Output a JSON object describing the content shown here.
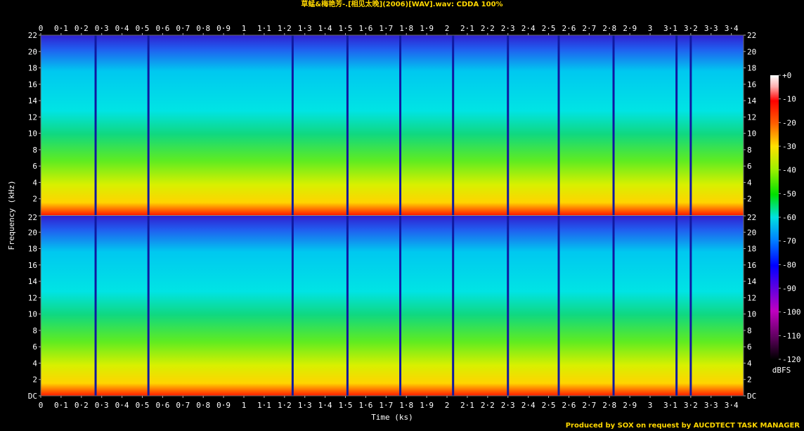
{
  "chart_data": {
    "type": "heatmap",
    "title": "草蜢&梅艳芳-.[相见太晚](2006)[WAV].wav: CDDA 100%",
    "xlabel": "Time (ks)",
    "ylabel": "Frequency (kHz)",
    "colorbar_label": "dBFS",
    "credit": "Produced by SOX on request by AUCDTECT TASK MANAGER",
    "x_ticks": [
      "0",
      "0·1",
      "0·2",
      "0·3",
      "0·4",
      "0·5",
      "0·6",
      "0·7",
      "0·8",
      "0·9",
      "1",
      "1·1",
      "1·2",
      "1·3",
      "1·4",
      "1·5",
      "1·6",
      "1·7",
      "1·8",
      "1·9",
      "2",
      "2·1",
      "2·2",
      "2·3",
      "2·4",
      "2·5",
      "2·6",
      "2·7",
      "2·8",
      "2·9",
      "3",
      "3·1",
      "3·2",
      "3·3",
      "3·4"
    ],
    "x_range": [
      0,
      3.46
    ],
    "y_ticks": [
      "DC",
      "2",
      "4",
      "6",
      "8",
      "10",
      "12",
      "14",
      "16",
      "18",
      "20",
      "22"
    ],
    "y_range_khz": [
      0,
      22
    ],
    "channels": 2,
    "colorbar_ticks": [
      "+0",
      "-10",
      "-20",
      "-30",
      "-40",
      "-50",
      "-60",
      "-70",
      "-80",
      "-90",
      "-100",
      "-110",
      "-120"
    ],
    "colorbar_range_dbfs": [
      -120,
      0
    ],
    "track_boundaries_ks": [
      0.27,
      0.53,
      1.24,
      1.51,
      1.77,
      2.03,
      2.3,
      2.55,
      2.82,
      3.13,
      3.2
    ]
  }
}
